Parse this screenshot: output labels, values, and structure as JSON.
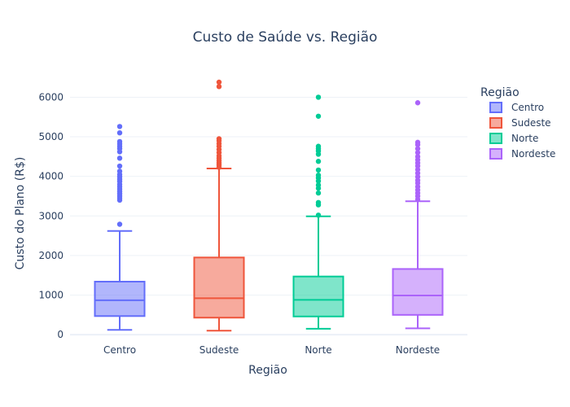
{
  "chart_data": {
    "type": "box",
    "title": "Custo de Saúde vs. Região",
    "xlabel": "Região",
    "ylabel": "Custo do Plano (R$)",
    "ylim": [
      -100,
      6400
    ],
    "yticks": [
      0,
      1000,
      2000,
      3000,
      4000,
      5000,
      6000
    ],
    "categories": [
      "Centro",
      "Sudeste",
      "Norte",
      "Nordeste"
    ],
    "legend": {
      "title": "Região",
      "position": "top-right"
    },
    "grid": true,
    "series": [
      {
        "name": "Centro",
        "color": "#636efa",
        "min": 120,
        "q1": 470,
        "median": 870,
        "q3": 1340,
        "max": 2620,
        "outliers": [
          2790,
          3400,
          3450,
          3500,
          3560,
          3620,
          3680,
          3740,
          3800,
          3870,
          3930,
          3990,
          4050,
          4130,
          4260,
          4460,
          4620,
          4700,
          4760,
          4820,
          4880,
          5100,
          5260
        ]
      },
      {
        "name": "Sudeste",
        "color": "#ef553b",
        "min": 100,
        "q1": 430,
        "median": 920,
        "q3": 1950,
        "max": 4200,
        "outliers": [
          4230,
          4290,
          4340,
          4400,
          4460,
          4520,
          4600,
          4680,
          4760,
          4830,
          4900,
          4950,
          6270,
          6380
        ]
      },
      {
        "name": "Norte",
        "color": "#00cc96",
        "min": 150,
        "q1": 460,
        "median": 880,
        "q3": 1470,
        "max": 2990,
        "outliers": [
          3020,
          3280,
          3340,
          3580,
          3700,
          3780,
          3880,
          3960,
          4030,
          4160,
          4380,
          4560,
          4640,
          4700,
          4760,
          5520,
          6000
        ]
      },
      {
        "name": "Nordeste",
        "color": "#ab63fa",
        "min": 160,
        "q1": 500,
        "median": 990,
        "q3": 1660,
        "max": 3370,
        "outliers": [
          3420,
          3500,
          3580,
          3660,
          3740,
          3830,
          3900,
          3990,
          4080,
          4170,
          4260,
          4340,
          4420,
          4500,
          4600,
          4700,
          4800,
          4860,
          5860
        ]
      }
    ]
  }
}
